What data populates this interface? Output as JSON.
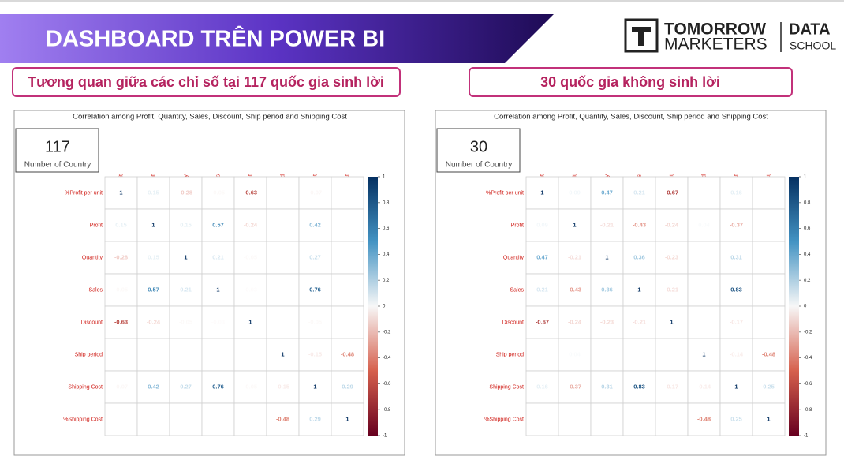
{
  "header": {
    "title": "DASHBOARD TRÊN POWER BI",
    "logo": {
      "line1": "TOMORROW",
      "line2": "MARKETERS",
      "tag1": "DATA",
      "tag2": "SCHOOL"
    }
  },
  "chart_data": [
    {
      "type": "heatmap",
      "heading": "Tương quan giữa các chỉ số tại 117 quốc gia sinh lời",
      "title": "Correlation among Profit, Quantity, Sales, Discount, Ship period and Shipping Cost",
      "card": {
        "value": "117",
        "label": "Number of Country"
      },
      "variables": [
        "%Profit per unit",
        "Profit",
        "Quantity",
        "Sales",
        "Discount",
        "Ship period",
        "Shipping Cost",
        "%Shipping Cost"
      ],
      "matrix": [
        [
          1,
          0.15,
          -0.28,
          -0.05,
          -0.63,
          null,
          -0.07,
          null
        ],
        [
          0.15,
          1,
          0.15,
          0.57,
          -0.24,
          null,
          0.42,
          null
        ],
        [
          -0.28,
          0.15,
          1,
          0.21,
          -0.05,
          null,
          0.27,
          null
        ],
        [
          -0.05,
          0.57,
          0.21,
          1,
          -0.03,
          null,
          0.76,
          null
        ],
        [
          -0.63,
          -0.24,
          -0.05,
          -0.03,
          1,
          null,
          -0.05,
          null
        ],
        [
          null,
          null,
          null,
          null,
          null,
          1,
          -0.15,
          -0.48
        ],
        [
          -0.07,
          0.42,
          0.27,
          0.76,
          -0.05,
          -0.15,
          1,
          0.29
        ],
        [
          null,
          null,
          null,
          null,
          null,
          -0.48,
          0.29,
          1
        ]
      ],
      "colorbar": {
        "lim": [
          -1,
          1
        ],
        "ticks": [
          1,
          0.8,
          0.6,
          0.4,
          0.2,
          0,
          -0.2,
          -0.4,
          -0.6,
          -0.8,
          -1
        ]
      }
    },
    {
      "type": "heatmap",
      "heading": "30 quốc gia không sinh lời",
      "title": "Correlation among Profit, Quantity, Sales, Discount, Ship period and Shipping Cost",
      "card": {
        "value": "30",
        "label": "Number of Country"
      },
      "variables": [
        "%Profit per unit",
        "Profit",
        "Quantity",
        "Sales",
        "Discount",
        "Ship period",
        "Shipping Cost",
        "%Shipping Cost"
      ],
      "matrix": [
        [
          1,
          0.09,
          0.47,
          0.21,
          -0.67,
          null,
          0.16,
          null
        ],
        [
          0.09,
          1,
          -0.21,
          -0.43,
          -0.24,
          0.04,
          -0.37,
          null
        ],
        [
          0.47,
          -0.21,
          1,
          0.36,
          -0.23,
          null,
          0.31,
          null
        ],
        [
          0.21,
          -0.43,
          0.36,
          1,
          -0.21,
          null,
          0.83,
          null
        ],
        [
          -0.67,
          -0.24,
          -0.23,
          -0.21,
          1,
          null,
          -0.17,
          null
        ],
        [
          null,
          0.04,
          null,
          null,
          null,
          1,
          -0.14,
          -0.48
        ],
        [
          0.16,
          -0.37,
          0.31,
          0.83,
          -0.17,
          -0.14,
          1,
          0.25
        ],
        [
          null,
          null,
          null,
          null,
          null,
          -0.48,
          0.25,
          1
        ]
      ],
      "colorbar": {
        "lim": [
          -1,
          1
        ],
        "ticks": [
          1,
          0.8,
          0.6,
          0.4,
          0.2,
          0,
          -0.2,
          -0.4,
          -0.6,
          -0.8,
          -1
        ]
      }
    }
  ]
}
